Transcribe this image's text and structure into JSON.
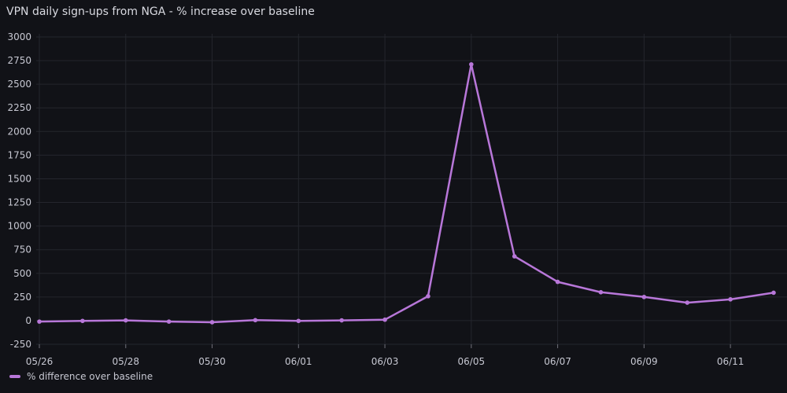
{
  "colors": {
    "background": "#111217",
    "series": "#B877D9",
    "grid": "#24262d",
    "text": "#c7c8d2"
  },
  "chart_data": {
    "type": "line",
    "title": "VPN daily sign-ups from NGA - % increase over baseline",
    "x": [
      "05/26",
      "05/27",
      "05/28",
      "05/29",
      "05/30",
      "05/31",
      "06/01",
      "06/02",
      "06/03",
      "06/04",
      "06/05",
      "06/06",
      "06/07",
      "06/08",
      "06/09",
      "06/10",
      "06/11",
      "06/12"
    ],
    "x_tick_labels": [
      "05/26",
      "05/28",
      "05/30",
      "06/01",
      "06/03",
      "06/05",
      "06/07",
      "06/09",
      "06/11"
    ],
    "series": [
      {
        "name": "% difference over baseline",
        "values": [
          -10,
          -3,
          3,
          -10,
          -17,
          5,
          -3,
          3,
          10,
          258,
          2710,
          680,
          410,
          300,
          250,
          190,
          225,
          295
        ]
      }
    ],
    "ylim": [
      -250,
      3000
    ],
    "y_ticks": [
      -250,
      0,
      250,
      500,
      750,
      1000,
      1250,
      1500,
      1750,
      2000,
      2250,
      2500,
      2750,
      3000
    ],
    "grid": true,
    "legend": "bottom-left"
  }
}
